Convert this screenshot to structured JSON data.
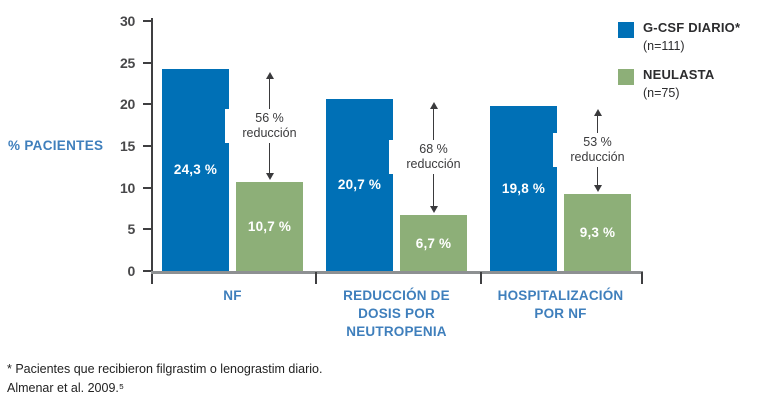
{
  "chart_data": {
    "type": "bar",
    "title": "",
    "ylabel": "% PACIENTES",
    "ylim": [
      0,
      30
    ],
    "ytick_step": 5,
    "grid": false,
    "legend_position": "top-right",
    "categories": [
      "NF",
      "REDUCCIÓN DE DOSIS POR NEUTROPENIA",
      "HOSPITALIZACIÓN POR NF"
    ],
    "categories_lines": [
      [
        "NF"
      ],
      [
        "REDUCCIÓN DE",
        "DOSIS POR",
        "NEUTROPENIA"
      ],
      [
        "HOSPITALIZACIÓN",
        "POR NF"
      ]
    ],
    "series": [
      {
        "name": "G-CSF DIARIO*",
        "n": "(n=111)",
        "color": "#0070B6",
        "values": [
          24.3,
          20.7,
          19.8
        ],
        "value_labels": [
          "24,3 %",
          "20,7 %",
          "19,8 %"
        ]
      },
      {
        "name": "NEULASTA",
        "n": "(n=75)",
        "color": "#8DAF78",
        "values": [
          10.7,
          6.7,
          9.3
        ],
        "value_labels": [
          "10,7 %",
          "6,7 %",
          "9,3 %"
        ]
      }
    ],
    "reductions": [
      {
        "pct": "56 %",
        "word": "reducción"
      },
      {
        "pct": "68 %",
        "word": "reducción"
      },
      {
        "pct": "53 %",
        "word": "reducción"
      }
    ]
  },
  "footnote": {
    "line1": "* Pacientes que recibieron filgrastim o lenograstim diario.",
    "line2": "Almenar et al. 2009.⁵"
  },
  "colors": {
    "bar_blue": "#0070B6",
    "bar_green": "#8DAF78",
    "label_blue": "#3F7FBC",
    "axis_dark": "#3F3F41",
    "axis_gray": "#8D9092"
  }
}
